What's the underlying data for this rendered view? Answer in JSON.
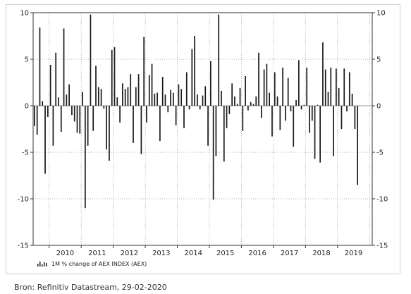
{
  "chart_data": {
    "type": "bar",
    "title": "",
    "xlabel": "",
    "ylabel": "",
    "ylim": [
      -15,
      10
    ],
    "y_ticks": [
      "10",
      "5",
      "0",
      "-5",
      "-10",
      "-15"
    ],
    "y_tick_values": [
      10,
      5,
      0,
      -5,
      -10,
      -15
    ],
    "x_tick_labels": [
      "2010",
      "2011",
      "2012",
      "2013",
      "2014",
      "2015",
      "2016",
      "2017",
      "2018",
      "2019"
    ],
    "x_range": [
      "2009-07",
      "2020-02"
    ],
    "bar_color": "#1a1a1a",
    "grid": true,
    "legend_position": "bottom-left",
    "series": [
      {
        "name": "1M % change of AEX INDEX (AEX)",
        "start_month": "2009-07",
        "values": [
          -2.2,
          -3.1,
          8.4,
          0.5,
          -7.3,
          -1.2,
          4.4,
          -4.3,
          5.7,
          0.9,
          -2.8,
          8.3,
          1.2,
          2.3,
          -1.0,
          -1.7,
          -2.9,
          -3.0,
          1.5,
          -11.0,
          -4.3,
          9.8,
          -2.7,
          4.3,
          2.0,
          1.8,
          -0.3,
          -4.7,
          -5.9,
          6.0,
          6.3,
          0.9,
          -1.8,
          2.4,
          1.8,
          2.0,
          3.4,
          -4.0,
          2.0,
          3.4,
          -5.2,
          7.4,
          -1.8,
          3.3,
          4.5,
          1.3,
          1.4,
          -3.8,
          3.1,
          1.2,
          -0.7,
          1.7,
          1.4,
          -2.1,
          2.3,
          1.8,
          -2.4,
          3.6,
          -0.4,
          6.1,
          7.5,
          1.2,
          -0.4,
          1.1,
          2.1,
          -4.3,
          4.8,
          -10.1,
          -5.4,
          9.8,
          1.6,
          -6.0,
          -2.4,
          -0.9,
          2.4,
          1.0,
          0.2,
          1.9,
          -2.7,
          3.2,
          -0.5,
          0.4,
          0.2,
          1.0,
          5.7,
          -1.3,
          3.9,
          4.5,
          1.4,
          -3.3,
          3.6,
          1.0,
          -2.6,
          4.1,
          -1.6,
          3.0,
          -0.6,
          -4.4,
          0.6,
          4.9,
          -0.4,
          0.1,
          4.1,
          -2.9,
          -1.6,
          -5.7,
          0.1,
          -6.1,
          6.8,
          3.9,
          1.5,
          4.1,
          -5.4,
          4.0,
          1.9,
          -2.5,
          4.0,
          -0.6,
          3.6,
          1.3,
          -2.5,
          -8.5
        ]
      }
    ]
  },
  "legend": {
    "label": "1M % change of AEX INDEX (AEX)"
  },
  "source_note": "Bron: Refinitiv Datastream, 29-02-2020"
}
